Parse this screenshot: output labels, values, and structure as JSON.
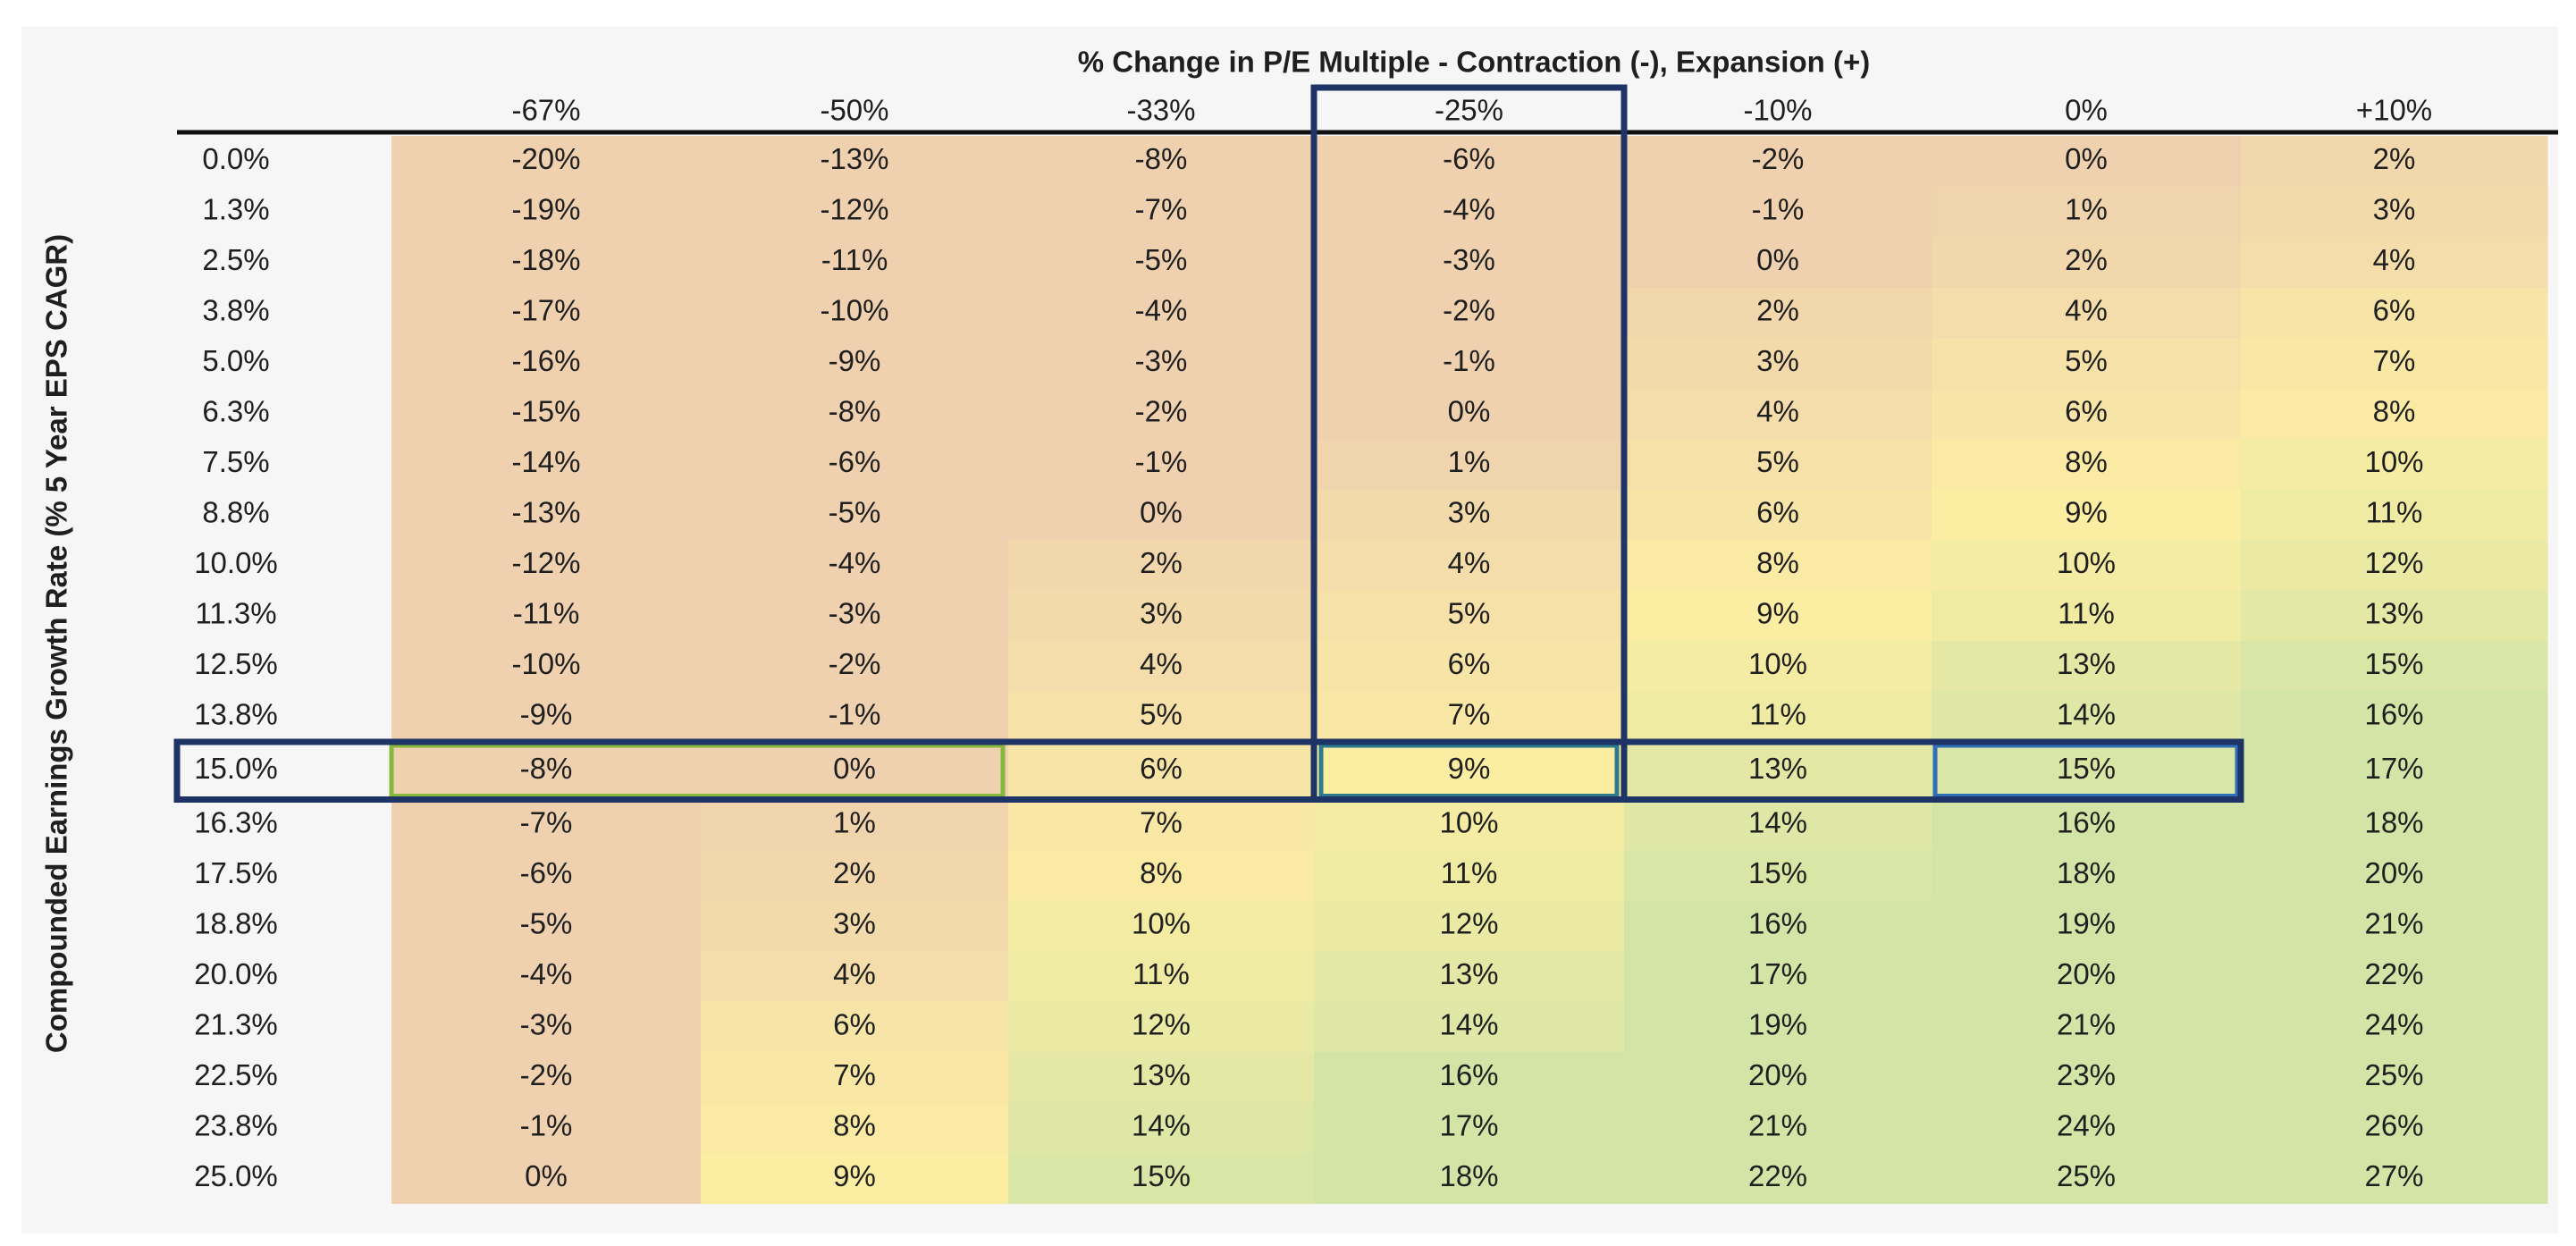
{
  "chart_data": {
    "type": "heatmap",
    "title": "% Change in P/E Multiple - Contraction (-), Expansion (+)",
    "xlabel": "% Change in P/E Multiple - Contraction (-), Expansion (+)",
    "ylabel": "Compounded Earnings Growth Rate (% 5 Year EPS CAGR)",
    "columns": [
      "-67%",
      "-50%",
      "-33%",
      "-25%",
      "-10%",
      "0%",
      "+10%"
    ],
    "rows": [
      "0.0%",
      "1.3%",
      "2.5%",
      "3.8%",
      "5.0%",
      "6.3%",
      "7.5%",
      "8.8%",
      "10.0%",
      "11.3%",
      "12.5%",
      "13.8%",
      "15.0%",
      "16.3%",
      "17.5%",
      "18.8%",
      "20.0%",
      "21.3%",
      "22.5%",
      "23.8%",
      "25.0%"
    ],
    "values": [
      [
        -20,
        -13,
        -8,
        -6,
        -2,
        0,
        2
      ],
      [
        -19,
        -12,
        -7,
        -4,
        -1,
        1,
        3
      ],
      [
        -18,
        -11,
        -5,
        -3,
        0,
        2,
        4
      ],
      [
        -17,
        -10,
        -4,
        -2,
        2,
        4,
        6
      ],
      [
        -16,
        -9,
        -3,
        -1,
        3,
        5,
        7
      ],
      [
        -15,
        -8,
        -2,
        0,
        4,
        6,
        8
      ],
      [
        -14,
        -6,
        -1,
        1,
        5,
        8,
        10
      ],
      [
        -13,
        -5,
        0,
        3,
        6,
        9,
        11
      ],
      [
        -12,
        -4,
        2,
        4,
        8,
        10,
        12
      ],
      [
        -11,
        -3,
        3,
        5,
        9,
        11,
        13
      ],
      [
        -10,
        -2,
        4,
        6,
        10,
        13,
        15
      ],
      [
        -9,
        -1,
        5,
        7,
        11,
        14,
        16
      ],
      [
        -8,
        0,
        6,
        9,
        13,
        15,
        17
      ],
      [
        -7,
        1,
        7,
        10,
        14,
        16,
        18
      ],
      [
        -6,
        2,
        8,
        11,
        15,
        18,
        20
      ],
      [
        -5,
        3,
        10,
        12,
        16,
        19,
        21
      ],
      [
        -4,
        4,
        11,
        13,
        17,
        20,
        22
      ],
      [
        -3,
        6,
        12,
        14,
        19,
        21,
        24
      ],
      [
        -2,
        7,
        13,
        16,
        20,
        23,
        25
      ],
      [
        -1,
        8,
        14,
        17,
        21,
        24,
        26
      ],
      [
        0,
        9,
        15,
        18,
        22,
        25,
        27
      ]
    ],
    "highlighted_column": "-25%",
    "highlighted_row": "15.0%",
    "color_scale": {
      "low": "#efd1b0",
      "mid": "#fbeda2",
      "high": "#d3e5a6"
    },
    "highlight_colors": {
      "column_box": "#1e3466",
      "row_box": "#1e3466",
      "green_box": "#86b83c",
      "teal_box": "#2c7a8c",
      "blue_box": "#2f6fb8"
    },
    "axis_line_color": "#111111",
    "background": "#f6f6f6"
  }
}
